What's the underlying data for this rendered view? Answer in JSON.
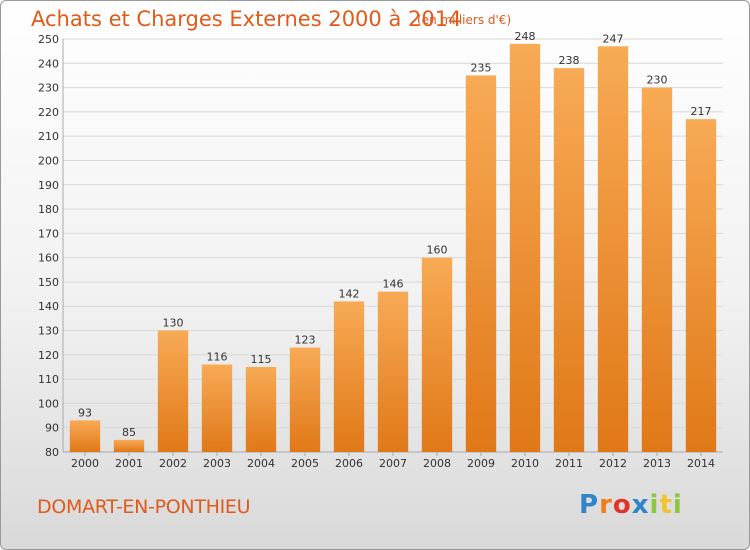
{
  "header": {
    "title": "Achats et Charges Externes 2000 à 2014",
    "unit": "(en milliers d'€)"
  },
  "footer": {
    "town": "DOMART-EN-PONTHIEU",
    "logo": "Proxiti",
    "logo_colors": [
      "#2e86c8",
      "#f07d1a",
      "#e0362a",
      "#2e86c8",
      "#8cc63f",
      "#f4c22c",
      "#8cc63f"
    ]
  },
  "colors": {
    "bar_light": "#f8aa55",
    "bar_dark": "#e07818",
    "grid": "#d8d8d8",
    "text": "#333333",
    "accent": "#e05a1a"
  },
  "chart_data": {
    "type": "bar",
    "categories": [
      "2000",
      "2001",
      "2002",
      "2003",
      "2004",
      "2005",
      "2006",
      "2007",
      "2008",
      "2009",
      "2010",
      "2011",
      "2012",
      "2013",
      "2014"
    ],
    "values": [
      93,
      85,
      130,
      116,
      115,
      123,
      142,
      146,
      160,
      235,
      248,
      238,
      247,
      230,
      217
    ],
    "title": "Achats et Charges Externes 2000 à 2014",
    "subtitle": "(en milliers d'€)",
    "ylim": [
      80,
      250
    ],
    "ytick_step": 10,
    "grid": true
  }
}
